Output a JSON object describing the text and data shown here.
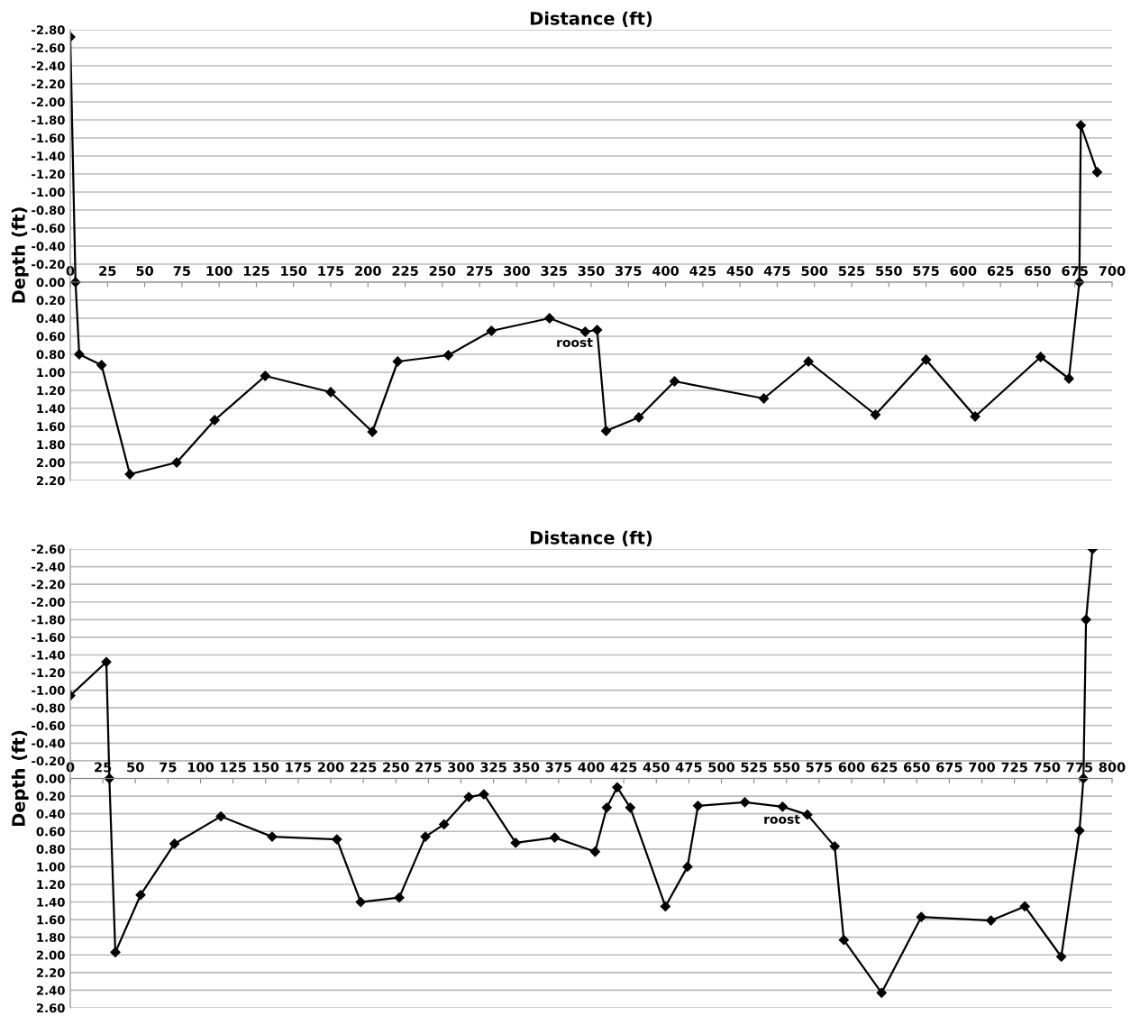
{
  "chart_data": [
    {
      "type": "line",
      "xlabel": "Distance (ft)",
      "ylabel": "Depth (ft)",
      "grid": "y",
      "marker": "diamond",
      "line_style": "solid",
      "legend": false,
      "xlim": [
        0,
        700
      ],
      "xticks": [
        0,
        25,
        50,
        75,
        100,
        125,
        150,
        175,
        200,
        225,
        250,
        275,
        300,
        325,
        350,
        375,
        400,
        425,
        450,
        475,
        500,
        525,
        550,
        575,
        600,
        625,
        650,
        675,
        700
      ],
      "ylim": [
        2.2,
        -2.8
      ],
      "yticks": [
        {
          "value": -2.8,
          "label": "-2.80"
        },
        {
          "value": -2.6,
          "label": "-2.60"
        },
        {
          "value": -2.4,
          "label": "-2.40"
        },
        {
          "value": -2.2,
          "label": "-2.20"
        },
        {
          "value": -2.0,
          "label": "-2.00"
        },
        {
          "value": -1.8,
          "label": "-1.80"
        },
        {
          "value": -1.6,
          "label": "-1.60"
        },
        {
          "value": -1.4,
          "label": "-1.40"
        },
        {
          "value": -1.2,
          "label": "-1.20"
        },
        {
          "value": -1.0,
          "label": "-1.00"
        },
        {
          "value": -0.8,
          "label": "-0.80"
        },
        {
          "value": -0.6,
          "label": "-0.60"
        },
        {
          "value": -0.4,
          "label": "-0.40"
        },
        {
          "value": -0.2,
          "label": "-0.20"
        },
        {
          "value": 0,
          "label": "0.00"
        },
        {
          "value": 0.2,
          "label": "0.20"
        },
        {
          "value": 0.4,
          "label": "0.40"
        },
        {
          "value": 0.6,
          "label": "0.60"
        },
        {
          "value": 0.8,
          "label": "0.80"
        },
        {
          "value": 1.0,
          "label": "1.00"
        },
        {
          "value": 1.2,
          "label": "1.20"
        },
        {
          "value": 1.4,
          "label": "1.40"
        },
        {
          "value": 1.6,
          "label": "1.60"
        },
        {
          "value": 1.8,
          "label": "1.80"
        },
        {
          "value": 2.0,
          "label": "2.00"
        },
        {
          "value": 2.2,
          "label": "2.20"
        }
      ],
      "series": [
        {
          "color": "#000000",
          "x": [
            0,
            3.5,
            6,
            21,
            40,
            71.5,
            97,
            131,
            175,
            203,
            220,
            254,
            283,
            322,
            346,
            354,
            360,
            382,
            406,
            466,
            496,
            541,
            575,
            608,
            652,
            671,
            678,
            679,
            690
          ],
          "values": [
            -2.72,
            0.0,
            0.8,
            0.92,
            2.13,
            2.0,
            1.53,
            1.04,
            1.22,
            1.66,
            0.88,
            0.81,
            0.54,
            0.4,
            0.55,
            0.53,
            1.65,
            1.5,
            1.1,
            1.29,
            0.88,
            1.47,
            0.86,
            1.49,
            0.83,
            1.07,
            0.0,
            -1.74,
            -1.22
          ]
        }
      ],
      "annotations": [
        "roost"
      ]
    },
    {
      "type": "line",
      "xlabel": "Distance (ft)",
      "ylabel": "Depth (ft)",
      "grid": "y",
      "marker": "diamond",
      "line_style": "solid",
      "legend": false,
      "xlim": [
        0,
        800
      ],
      "xticks": [
        0,
        25,
        50,
        75,
        100,
        125,
        150,
        175,
        200,
        225,
        250,
        275,
        300,
        325,
        350,
        375,
        400,
        425,
        450,
        475,
        500,
        525,
        550,
        575,
        600,
        625,
        650,
        675,
        700,
        725,
        750,
        775,
        800
      ],
      "ylim": [
        2.6,
        -2.6
      ],
      "yticks": [
        {
          "value": -2.6,
          "label": "-2.60"
        },
        {
          "value": -2.4,
          "label": "-2.40"
        },
        {
          "value": -2.2,
          "label": "-2.20"
        },
        {
          "value": -2.0,
          "label": "-2.00"
        },
        {
          "value": -1.8,
          "label": "-1.80"
        },
        {
          "value": -1.6,
          "label": "-1.60"
        },
        {
          "value": -1.4,
          "label": "-1.40"
        },
        {
          "value": -1.2,
          "label": "-1.20"
        },
        {
          "value": -1.0,
          "label": "-1.00"
        },
        {
          "value": -0.8,
          "label": "-0.80"
        },
        {
          "value": -0.6,
          "label": "-0.60"
        },
        {
          "value": -0.4,
          "label": "-0.40"
        },
        {
          "value": -0.2,
          "label": "-0.20"
        },
        {
          "value": 0,
          "label": "0.00"
        },
        {
          "value": 0.2,
          "label": "0.20"
        },
        {
          "value": 0.4,
          "label": "0.40"
        },
        {
          "value": 0.6,
          "label": "0.60"
        },
        {
          "value": 0.8,
          "label": "0.80"
        },
        {
          "value": 1.0,
          "label": "1.00"
        },
        {
          "value": 1.2,
          "label": "1.20"
        },
        {
          "value": 1.4,
          "label": "1.40"
        },
        {
          "value": 1.6,
          "label": "1.60"
        },
        {
          "value": 1.8,
          "label": "1.80"
        },
        {
          "value": 2.0,
          "label": "2.00"
        },
        {
          "value": 2.2,
          "label": "2.20"
        },
        {
          "value": 2.4,
          "label": "2.40"
        },
        {
          "value": 2.6,
          "label": "2.60"
        }
      ],
      "series": [
        {
          "color": "#000000",
          "x": [
            0,
            27.7,
            30,
            34.6,
            54,
            80,
            115.6,
            155,
            204.7,
            223,
            252.6,
            272.7,
            287,
            306,
            317.6,
            342,
            372,
            403,
            412,
            420,
            430,
            457,
            474,
            482,
            518,
            547,
            566,
            587,
            594,
            623,
            653.5,
            707,
            733,
            761,
            775,
            778,
            780,
            785
          ],
          "values": [
            -0.94,
            -1.32,
            0.0,
            1.97,
            1.32,
            0.74,
            0.43,
            0.66,
            0.69,
            1.4,
            1.35,
            0.66,
            0.52,
            0.21,
            0.18,
            0.73,
            0.67,
            0.83,
            0.33,
            0.1,
            0.33,
            1.45,
            1.0,
            0.31,
            0.27,
            0.32,
            0.41,
            0.77,
            1.83,
            2.43,
            1.57,
            1.61,
            1.45,
            2.02,
            0.59,
            0.0,
            -1.8,
            -2.6
          ]
        }
      ],
      "annotations": [
        "roost"
      ]
    }
  ]
}
